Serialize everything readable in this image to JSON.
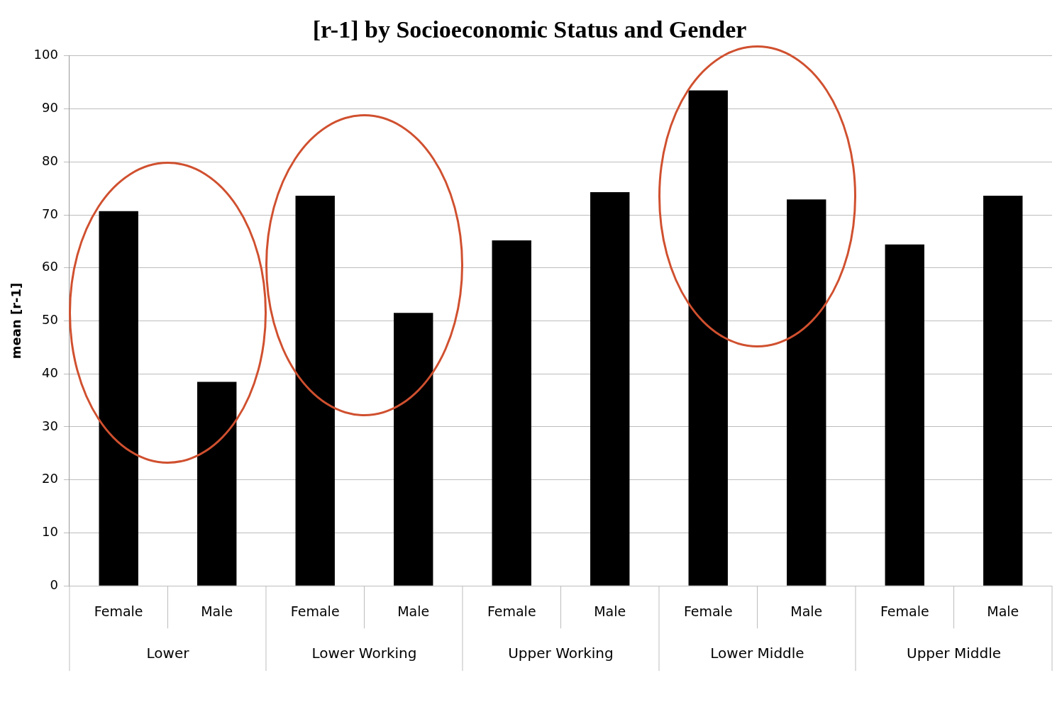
{
  "chart_data": {
    "type": "bar",
    "title": "[r-1] by Socioeconomic Status and Gender",
    "ylabel": "mean [r-1]",
    "categories": [
      "Female",
      "Male",
      "Female",
      "Male",
      "Female",
      "Male",
      "Female",
      "Male",
      "Female",
      "Male"
    ],
    "values": [
      70.7,
      38.5,
      73.6,
      51.5,
      65.2,
      74.3,
      93.5,
      72.9,
      64.4,
      73.6
    ],
    "color": "#000000",
    "annotations": [
      "Lower",
      "Lower Working",
      "Upper Working",
      "Lower Middle",
      "Upper Middle"
    ],
    "ylim": [
      0,
      100
    ],
    "yticks": [
      0,
      10,
      20,
      30,
      40,
      50,
      60,
      70,
      80,
      90,
      100
    ],
    "grid": "y",
    "legend": false
  }
}
